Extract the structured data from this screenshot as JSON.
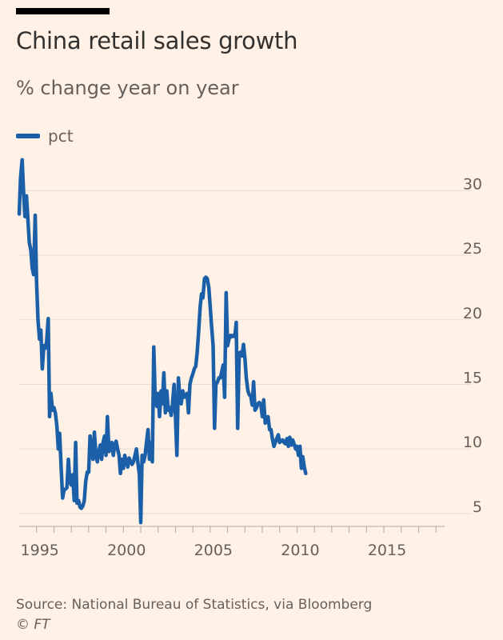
{
  "header": {
    "title": "China retail sales growth",
    "subtitle": "% change year on year"
  },
  "legend": {
    "label": "pct"
  },
  "footer": {
    "source": "Source: National Bureau of Statistics, via Bloomberg",
    "credit": "© FT"
  },
  "colors": {
    "background": "#FFF1E5",
    "line": "#1A5FA8",
    "grid": "#E9DDD2",
    "text": "#66605C"
  },
  "chart_data": {
    "type": "line",
    "title": "China retail sales growth",
    "subtitle": "% change year on year",
    "xlabel": "",
    "ylabel": "",
    "xlim": [
      1994.0,
      2018.5
    ],
    "ylim": [
      4,
      33
    ],
    "y_ticks": [
      5,
      10,
      15,
      20,
      25,
      30
    ],
    "x_ticks": [
      1995,
      2000,
      2005,
      2010,
      2015
    ],
    "y_axis_position": "right",
    "grid": "horizontal",
    "legend_position": "top-left",
    "series": [
      {
        "name": "pct",
        "points": [
          [
            1994.0,
            28.2
          ],
          [
            1994.08,
            31.0
          ],
          [
            1994.17,
            32.4
          ],
          [
            1994.25,
            30.0
          ],
          [
            1994.33,
            28.0
          ],
          [
            1994.42,
            29.6
          ],
          [
            1994.5,
            27.8
          ],
          [
            1994.58,
            26.0
          ],
          [
            1994.67,
            25.4
          ],
          [
            1994.75,
            24.0
          ],
          [
            1994.83,
            23.5
          ],
          [
            1994.92,
            28.1
          ],
          [
            1995.0,
            23.0
          ],
          [
            1995.08,
            20.0
          ],
          [
            1995.17,
            18.5
          ],
          [
            1995.25,
            19.2
          ],
          [
            1995.33,
            16.2
          ],
          [
            1995.42,
            18.0
          ],
          [
            1995.5,
            17.8
          ],
          [
            1995.58,
            18.3
          ],
          [
            1995.67,
            20.1
          ],
          [
            1995.75,
            12.5
          ],
          [
            1995.83,
            14.3
          ],
          [
            1995.92,
            13.0
          ],
          [
            1996.0,
            13.2
          ],
          [
            1996.08,
            12.8
          ],
          [
            1996.17,
            11.8
          ],
          [
            1996.25,
            10.0
          ],
          [
            1996.33,
            11.2
          ],
          [
            1996.42,
            8.5
          ],
          [
            1996.5,
            6.2
          ],
          [
            1996.58,
            6.8
          ],
          [
            1996.67,
            6.9
          ],
          [
            1996.75,
            7.0
          ],
          [
            1996.83,
            9.2
          ],
          [
            1996.92,
            7.5
          ],
          [
            1997.0,
            7.2
          ],
          [
            1997.08,
            8.0
          ],
          [
            1997.17,
            6.0
          ],
          [
            1997.25,
            10.5
          ],
          [
            1997.33,
            5.8
          ],
          [
            1997.42,
            6.0
          ],
          [
            1997.5,
            5.5
          ],
          [
            1997.58,
            5.4
          ],
          [
            1997.67,
            5.6
          ],
          [
            1997.75,
            6.0
          ],
          [
            1997.83,
            7.5
          ],
          [
            1997.92,
            8.2
          ],
          [
            1998.0,
            8.2
          ],
          [
            1998.08,
            11.0
          ],
          [
            1998.17,
            9.8
          ],
          [
            1998.25,
            9.2
          ],
          [
            1998.33,
            11.3
          ],
          [
            1998.42,
            9.5
          ],
          [
            1998.5,
            9.0
          ],
          [
            1998.58,
            9.8
          ],
          [
            1998.67,
            10.3
          ],
          [
            1998.75,
            9.2
          ],
          [
            1998.83,
            10.5
          ],
          [
            1998.92,
            11.0
          ],
          [
            1999.0,
            9.5
          ],
          [
            1999.08,
            12.5
          ],
          [
            1999.17,
            9.8
          ],
          [
            1999.25,
            10.0
          ],
          [
            1999.33,
            10.5
          ],
          [
            1999.42,
            9.5
          ],
          [
            1999.5,
            10.3
          ],
          [
            1999.58,
            10.6
          ],
          [
            1999.67,
            10.0
          ],
          [
            1999.75,
            9.5
          ],
          [
            1999.83,
            8.1
          ],
          [
            1999.92,
            9.2
          ],
          [
            2000.0,
            8.5
          ],
          [
            2000.08,
            9.5
          ],
          [
            2000.17,
            9.0
          ],
          [
            2000.25,
            8.6
          ],
          [
            2000.33,
            9.3
          ],
          [
            2000.42,
            9.0
          ],
          [
            2000.5,
            8.8
          ],
          [
            2000.58,
            9.0
          ],
          [
            2000.67,
            9.5
          ],
          [
            2000.75,
            10.0
          ],
          [
            2000.83,
            9.0
          ],
          [
            2000.92,
            8.0
          ],
          [
            2001.0,
            4.3
          ],
          [
            2001.08,
            9.5
          ],
          [
            2001.17,
            9.0
          ],
          [
            2001.25,
            9.5
          ],
          [
            2001.33,
            10.5
          ],
          [
            2001.42,
            11.5
          ],
          [
            2001.5,
            9.2
          ],
          [
            2001.58,
            10.5
          ],
          [
            2001.67,
            9.0
          ],
          [
            2001.75,
            17.9
          ],
          [
            2001.83,
            14.0
          ],
          [
            2001.92,
            13.3
          ],
          [
            2002.0,
            14.3
          ],
          [
            2002.08,
            12.5
          ],
          [
            2002.17,
            14.5
          ],
          [
            2002.25,
            13.5
          ],
          [
            2002.33,
            15.9
          ],
          [
            2002.42,
            12.8
          ],
          [
            2002.5,
            14.5
          ],
          [
            2002.58,
            13.0
          ],
          [
            2002.67,
            13.2
          ],
          [
            2002.75,
            12.6
          ],
          [
            2002.83,
            13.5
          ],
          [
            2002.92,
            15.0
          ],
          [
            2003.0,
            12.5
          ],
          [
            2003.08,
            9.5
          ],
          [
            2003.17,
            15.5
          ],
          [
            2003.25,
            14.0
          ],
          [
            2003.33,
            13.5
          ],
          [
            2003.42,
            14.5
          ],
          [
            2003.5,
            14.0
          ],
          [
            2003.58,
            14.2
          ],
          [
            2003.67,
            14.3
          ],
          [
            2003.75,
            12.8
          ],
          [
            2003.83,
            15.0
          ],
          [
            2003.92,
            15.5
          ],
          [
            2004.0,
            15.8
          ],
          [
            2004.08,
            16.2
          ],
          [
            2004.17,
            16.4
          ],
          [
            2004.25,
            17.5
          ],
          [
            2004.33,
            19.0
          ],
          [
            2004.42,
            21.0
          ],
          [
            2004.5,
            22.0
          ],
          [
            2004.58,
            21.7
          ],
          [
            2004.67,
            23.2
          ],
          [
            2004.75,
            23.3
          ],
          [
            2004.83,
            23.2
          ],
          [
            2004.92,
            22.5
          ],
          [
            2005.0,
            21.0
          ],
          [
            2005.08,
            19.5
          ],
          [
            2005.17,
            18.0
          ],
          [
            2005.25,
            11.6
          ],
          [
            2005.33,
            15.0
          ],
          [
            2005.42,
            15.2
          ],
          [
            2005.5,
            15.5
          ],
          [
            2005.58,
            15.5
          ],
          [
            2005.67,
            16.0
          ],
          [
            2005.75,
            16.5
          ],
          [
            2005.83,
            14.0
          ],
          [
            2005.92,
            22.1
          ],
          [
            2006.0,
            18.0
          ],
          [
            2006.08,
            18.5
          ],
          [
            2006.17,
            18.8
          ],
          [
            2006.25,
            18.7
          ],
          [
            2006.33,
            18.8
          ],
          [
            2006.42,
            18.7
          ],
          [
            2006.5,
            19.8
          ],
          [
            2006.58,
            11.6
          ],
          [
            2006.67,
            17.4
          ],
          [
            2006.75,
            17.5
          ],
          [
            2006.83,
            17.2
          ],
          [
            2006.92,
            18.1
          ],
          [
            2007.0,
            17.0
          ],
          [
            2007.08,
            15.5
          ],
          [
            2007.17,
            14.5
          ],
          [
            2007.25,
            14.2
          ],
          [
            2007.33,
            14.1
          ],
          [
            2007.42,
            13.4
          ],
          [
            2007.5,
            15.2
          ],
          [
            2007.58,
            13.0
          ],
          [
            2007.67,
            13.2
          ],
          [
            2007.75,
            13.5
          ],
          [
            2007.83,
            13.6
          ],
          [
            2007.92,
            13.4
          ],
          [
            2008.0,
            12.5
          ],
          [
            2008.08,
            13.8
          ],
          [
            2008.17,
            12.0
          ],
          [
            2008.25,
            12.2
          ],
          [
            2008.33,
            12.5
          ],
          [
            2008.42,
            11.5
          ],
          [
            2008.5,
            11.5
          ],
          [
            2008.58,
            10.8
          ],
          [
            2008.67,
            10.2
          ],
          [
            2008.75,
            10.5
          ],
          [
            2008.83,
            10.8
          ],
          [
            2008.92,
            11.1
          ],
          [
            2009.0,
            10.5
          ],
          [
            2009.08,
            10.6
          ],
          [
            2009.17,
            10.7
          ],
          [
            2009.25,
            10.5
          ],
          [
            2009.33,
            10.4
          ],
          [
            2009.42,
            10.8
          ],
          [
            2009.5,
            10.2
          ],
          [
            2009.58,
            10.9
          ],
          [
            2009.67,
            10.3
          ],
          [
            2009.75,
            10.7
          ],
          [
            2009.83,
            10.4
          ],
          [
            2009.92,
            10.0
          ],
          [
            2010.0,
            10.2
          ],
          [
            2010.08,
            9.5
          ],
          [
            2010.17,
            10.2
          ],
          [
            2010.25,
            8.5
          ],
          [
            2010.33,
            9.4
          ],
          [
            2010.42,
            8.6
          ],
          [
            2010.5,
            8.1
          ]
        ]
      }
    ]
  }
}
